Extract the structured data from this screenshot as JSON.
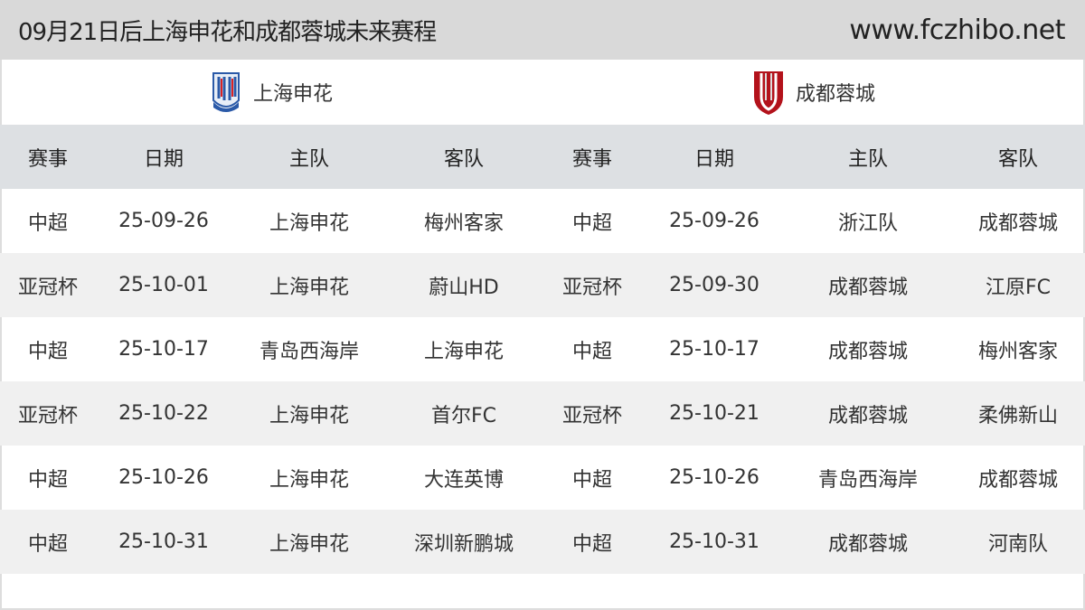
{
  "header": {
    "title": "09月21日后上海申花和成都蓉城未来赛程",
    "site": "www.fczhibo.net"
  },
  "teams": [
    {
      "name": "上海申花",
      "logo": "shanghai-shenhua-crest-icon"
    },
    {
      "name": "成都蓉城",
      "logo": "chengdu-rongcheng-crest-icon"
    }
  ],
  "columns": [
    "赛事",
    "日期",
    "主队",
    "客队",
    "赛事",
    "日期",
    "主队",
    "客队"
  ],
  "rows": [
    [
      "中超",
      "25-09-26",
      "上海申花",
      "梅州客家",
      "中超",
      "25-09-26",
      "浙江队",
      "成都蓉城"
    ],
    [
      "亚冠杯",
      "25-10-01",
      "上海申花",
      "蔚山HD",
      "亚冠杯",
      "25-09-30",
      "成都蓉城",
      "江原FC"
    ],
    [
      "中超",
      "25-10-17",
      "青岛西海岸",
      "上海申花",
      "中超",
      "25-10-17",
      "成都蓉城",
      "梅州客家"
    ],
    [
      "亚冠杯",
      "25-10-22",
      "上海申花",
      "首尔FC",
      "亚冠杯",
      "25-10-21",
      "成都蓉城",
      "柔佛新山"
    ],
    [
      "中超",
      "25-10-26",
      "上海申花",
      "大连英博",
      "中超",
      "25-10-26",
      "青岛西海岸",
      "成都蓉城"
    ],
    [
      "中超",
      "25-10-31",
      "上海申花",
      "深圳新鹏城",
      "中超",
      "25-10-31",
      "成都蓉城",
      "河南队"
    ]
  ]
}
